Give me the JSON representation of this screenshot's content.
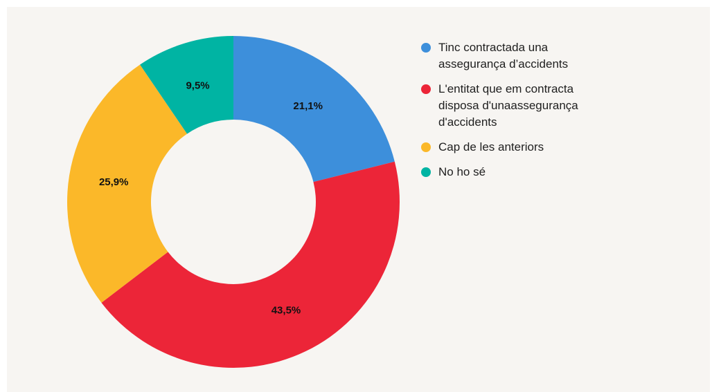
{
  "chart_data": {
    "type": "pie",
    "donut": true,
    "title": "",
    "slices": [
      {
        "label": "Tinc contractada una\nassegurança d’accidents",
        "value": 21.1,
        "display": "21,1%",
        "color": "#3d8fdb"
      },
      {
        "label": "L'entitat que em contracta\ndisposa d'unaassegurança\nd'accidents",
        "value": 43.5,
        "display": "43,5%",
        "color": "#ec2538"
      },
      {
        "label": "Cap de les anteriors",
        "value": 25.9,
        "display": "25,9%",
        "color": "#fbb829"
      },
      {
        "label": "No ho sé",
        "value": 9.5,
        "display": "9,5%",
        "color": "#00b4a3"
      }
    ],
    "legend_position": "right"
  },
  "colors": {
    "background": "#f7f5f2"
  }
}
